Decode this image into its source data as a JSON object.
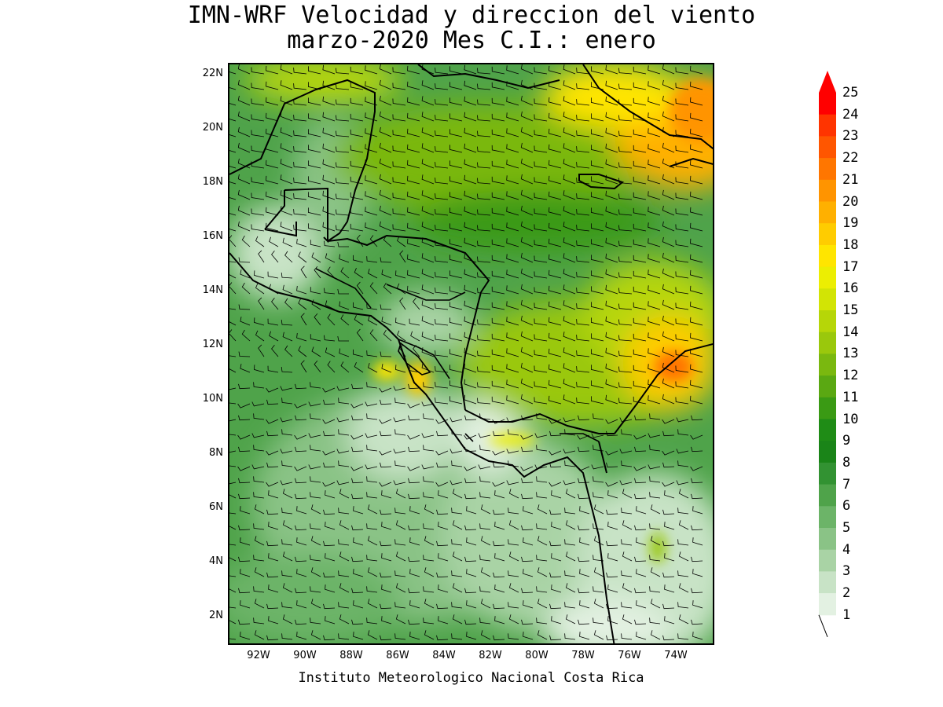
{
  "title": {
    "line1": "IMN-WRF Velocidad y direccion del viento",
    "line2": "marzo-2020 Mes C.I.: enero"
  },
  "credit": "Instituto Meteorologico Nacional Costa Rica",
  "axes": {
    "lat_labels": [
      "22N",
      "20N",
      "18N",
      "16N",
      "14N",
      "12N",
      "10N",
      "8N",
      "6N",
      "4N",
      "2N"
    ],
    "lon_labels": [
      "92W",
      "90W",
      "88W",
      "86W",
      "84W",
      "82W",
      "80W",
      "78W",
      "76W",
      "74W"
    ]
  },
  "legend": {
    "levels": [
      "1",
      "2",
      "3",
      "4",
      "5",
      "6",
      "7",
      "8",
      "9",
      "10",
      "11",
      "12",
      "13",
      "14",
      "15",
      "16",
      "17",
      "18",
      "19",
      "20",
      "21",
      "22",
      "23",
      "24",
      "25"
    ],
    "colors": [
      "#ffffff",
      "#e3f1e2",
      "#c8e3c6",
      "#a9d3a5",
      "#8ac386",
      "#6cb468",
      "#4fa34a",
      "#329232",
      "#1a8418",
      "#1f8c16",
      "#3a9a14",
      "#5aa812",
      "#7ab80f",
      "#9ac80c",
      "#b6d608",
      "#d2e405",
      "#ecee02",
      "#ffe500",
      "#ffcc00",
      "#ffb000",
      "#ff9400",
      "#ff7600",
      "#ff5600",
      "#ff3400",
      "#ff0000"
    ]
  },
  "map": {
    "region": "Central America and Caribbean",
    "lon_range": [
      -93,
      -72.5
    ],
    "lat_range": [
      1,
      22.4
    ],
    "field": "wind speed (shaded) and direction (barbs)"
  }
}
